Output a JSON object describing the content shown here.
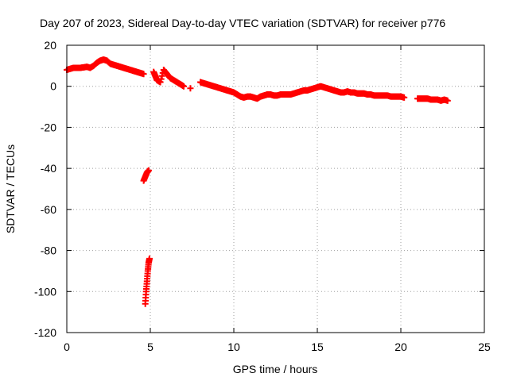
{
  "chart_data": {
    "type": "scatter",
    "title": "Day 207 of 2023, Sidereal Day-to-day VTEC variation (SDTVAR) for receiver p776",
    "xlabel": "GPS time / hours",
    "ylabel": "SDTVAR / TECUs",
    "xlim": [
      0,
      25
    ],
    "ylim": [
      -120,
      20
    ],
    "xticks": [
      0,
      5,
      10,
      15,
      20,
      25
    ],
    "yticks": [
      20,
      0,
      -20,
      -40,
      -60,
      -80,
      -100,
      -120
    ],
    "grid": true,
    "marker": "+",
    "color": "#ff0000",
    "series": [
      {
        "name": "SDTVAR",
        "points": [
          [
            0.0,
            8
          ],
          [
            0.2,
            8.5
          ],
          [
            0.4,
            9
          ],
          [
            0.6,
            9
          ],
          [
            0.8,
            9
          ],
          [
            1.0,
            9.2
          ],
          [
            1.2,
            9.5
          ],
          [
            1.4,
            9
          ],
          [
            1.6,
            10
          ],
          [
            1.8,
            11.5
          ],
          [
            2.0,
            12.5
          ],
          [
            2.2,
            13
          ],
          [
            2.4,
            12.5
          ],
          [
            2.6,
            11
          ],
          [
            2.8,
            10.5
          ],
          [
            3.0,
            10
          ],
          [
            3.2,
            9.5
          ],
          [
            3.4,
            9
          ],
          [
            3.6,
            8.5
          ],
          [
            3.8,
            8
          ],
          [
            4.0,
            7.5
          ],
          [
            4.2,
            7
          ],
          [
            4.4,
            6.5
          ],
          [
            4.6,
            6
          ],
          [
            4.6,
            -46
          ],
          [
            4.7,
            -44
          ],
          [
            4.8,
            -42
          ],
          [
            4.9,
            -41
          ],
          [
            4.7,
            -106
          ],
          [
            4.75,
            -100
          ],
          [
            4.8,
            -95
          ],
          [
            4.85,
            -90
          ],
          [
            4.9,
            -86
          ],
          [
            4.95,
            -84
          ],
          [
            5.2,
            7
          ],
          [
            5.3,
            5
          ],
          [
            5.4,
            3
          ],
          [
            5.6,
            2
          ],
          [
            5.8,
            8
          ],
          [
            6.0,
            6
          ],
          [
            6.2,
            4
          ],
          [
            6.4,
            3
          ],
          [
            6.6,
            2
          ],
          [
            6.8,
            1
          ],
          [
            7.0,
            0
          ],
          [
            7.4,
            -1
          ],
          [
            8.0,
            2
          ],
          [
            8.2,
            1.5
          ],
          [
            8.4,
            1
          ],
          [
            8.6,
            0.5
          ],
          [
            8.8,
            0
          ],
          [
            9.0,
            -0.5
          ],
          [
            9.2,
            -1
          ],
          [
            9.4,
            -1.5
          ],
          [
            9.6,
            -2
          ],
          [
            9.8,
            -2.5
          ],
          [
            10.0,
            -3
          ],
          [
            10.2,
            -4
          ],
          [
            10.4,
            -5
          ],
          [
            10.6,
            -5.5
          ],
          [
            10.8,
            -5
          ],
          [
            11.0,
            -5
          ],
          [
            11.2,
            -5.5
          ],
          [
            11.4,
            -6
          ],
          [
            11.6,
            -5
          ],
          [
            11.8,
            -4.5
          ],
          [
            12.0,
            -4
          ],
          [
            12.2,
            -4
          ],
          [
            12.4,
            -4.5
          ],
          [
            12.6,
            -4.5
          ],
          [
            12.8,
            -4
          ],
          [
            13.0,
            -4
          ],
          [
            13.2,
            -4
          ],
          [
            13.4,
            -4
          ],
          [
            13.6,
            -3.5
          ],
          [
            13.8,
            -3
          ],
          [
            14.0,
            -2.5
          ],
          [
            14.2,
            -2
          ],
          [
            14.4,
            -2
          ],
          [
            14.6,
            -1.5
          ],
          [
            14.8,
            -1
          ],
          [
            15.0,
            -0.5
          ],
          [
            15.2,
            0
          ],
          [
            15.4,
            -0.5
          ],
          [
            15.6,
            -1
          ],
          [
            15.8,
            -1.5
          ],
          [
            16.0,
            -2
          ],
          [
            16.2,
            -2.5
          ],
          [
            16.4,
            -3
          ],
          [
            16.6,
            -3
          ],
          [
            16.8,
            -2.5
          ],
          [
            17.0,
            -3
          ],
          [
            17.2,
            -3
          ],
          [
            17.4,
            -3.5
          ],
          [
            17.6,
            -3.5
          ],
          [
            17.8,
            -3.5
          ],
          [
            18.0,
            -4
          ],
          [
            18.2,
            -4
          ],
          [
            18.4,
            -4.5
          ],
          [
            18.6,
            -4.5
          ],
          [
            18.8,
            -4.5
          ],
          [
            19.0,
            -4.5
          ],
          [
            19.2,
            -4.5
          ],
          [
            19.4,
            -5
          ],
          [
            19.6,
            -5
          ],
          [
            19.8,
            -5
          ],
          [
            20.0,
            -5
          ],
          [
            20.2,
            -5.5
          ],
          [
            21.0,
            -6
          ],
          [
            21.2,
            -6
          ],
          [
            21.4,
            -6
          ],
          [
            21.6,
            -6
          ],
          [
            21.8,
            -6.5
          ],
          [
            22.0,
            -6.5
          ],
          [
            22.2,
            -6.5
          ],
          [
            22.4,
            -7
          ],
          [
            22.6,
            -6.5
          ],
          [
            22.8,
            -7
          ]
        ]
      }
    ]
  }
}
